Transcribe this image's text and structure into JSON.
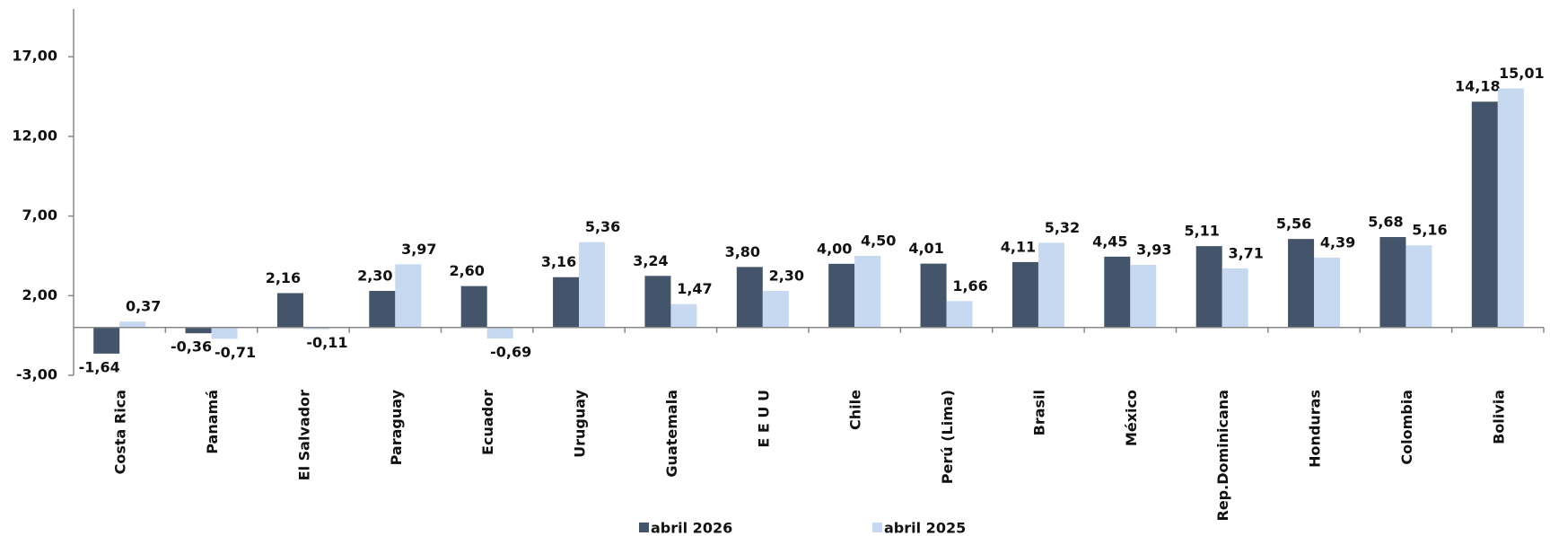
{
  "chart_data": {
    "type": "bar",
    "categories": [
      "Costa Rica",
      "Panamá",
      "El Salvador",
      "Paraguay",
      "Ecuador",
      "Uruguay",
      "Guatemala",
      "E E U U",
      "Chile",
      "Perú (Lima)",
      "Brasil",
      "México",
      "Rep.Dominicana",
      "Honduras",
      "Colombia",
      "Bolivia"
    ],
    "series": [
      {
        "name": "abril 2026",
        "color": "#44546a",
        "values": [
          -1.64,
          -0.36,
          2.16,
          2.3,
          2.6,
          3.16,
          3.24,
          3.8,
          4.0,
          4.01,
          4.11,
          4.45,
          5.11,
          5.56,
          5.68,
          14.18
        ],
        "value_labels": [
          "-1,64",
          "-0,36",
          "2,16",
          "2,30",
          "2,60",
          "3,16",
          "3,24",
          "3,80",
          "4,00",
          "4,01",
          "4,11",
          "4,45",
          "5,11",
          "5,56",
          "5,68",
          "14,18"
        ]
      },
      {
        "name": "abril 2025",
        "color": "#c6d9f0",
        "values": [
          0.37,
          -0.71,
          -0.11,
          3.97,
          -0.69,
          5.36,
          1.47,
          2.3,
          4.5,
          1.66,
          5.32,
          3.93,
          3.71,
          4.39,
          5.16,
          15.01
        ],
        "value_labels": [
          "0,37",
          "-0,71",
          "-0,11",
          "3,97",
          "-0,69",
          "5,36",
          "1,47",
          "2,30",
          "4,50",
          "1,66",
          "5,32",
          "3,93",
          "3,71",
          "4,39",
          "5,16",
          "15,01"
        ]
      }
    ],
    "ylim": [
      -3,
      20
    ],
    "yticks": [
      {
        "value": -3,
        "label": "-3,00"
      },
      {
        "value": 2,
        "label": "2,00"
      },
      {
        "value": 7,
        "label": "7,00"
      },
      {
        "value": 12,
        "label": "12,00"
      },
      {
        "value": 17,
        "label": "17,00"
      }
    ],
    "grid": false,
    "legend": "bottom"
  }
}
